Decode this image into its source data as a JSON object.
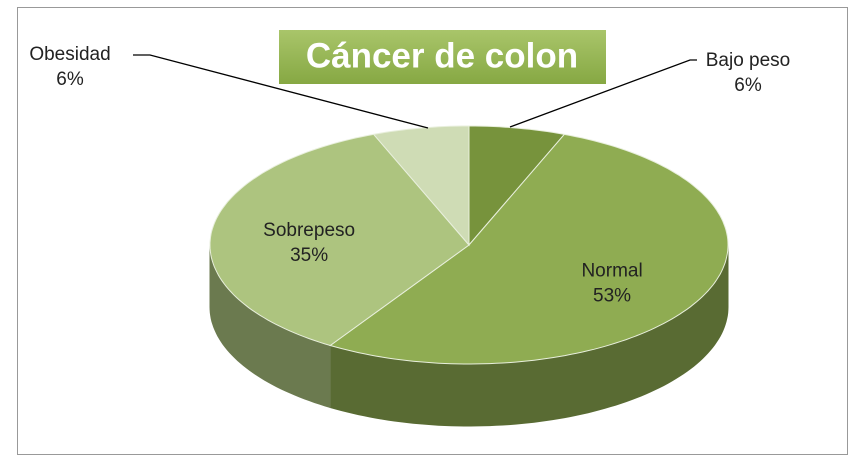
{
  "chart_data": {
    "type": "pie3d",
    "title": "Cáncer de colon",
    "categories": [
      "Bajo peso",
      "Normal",
      "Sobrepeso",
      "Obesidad"
    ],
    "values": [
      6,
      53,
      35,
      6
    ],
    "value_labels": [
      "6%",
      "53%",
      "35%",
      "6%"
    ],
    "colors": [
      "#77933c",
      "#8fac52",
      "#adc47f",
      "#cfdcb5"
    ]
  }
}
